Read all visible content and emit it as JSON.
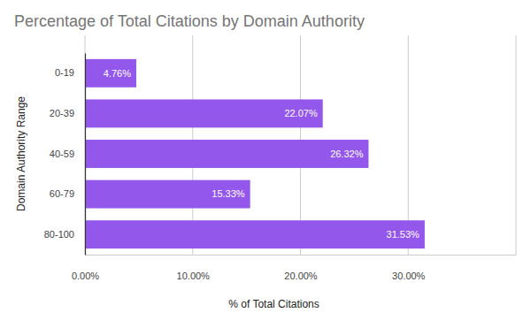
{
  "chart_data": {
    "type": "bar",
    "orientation": "horizontal",
    "title": "Percentage of Total Citations by Domain Authority",
    "x_label": "% of Total Citations",
    "y_label": "Domain Authority Range",
    "categories": [
      "0-19",
      "20-39",
      "40-59",
      "60-79",
      "80-100"
    ],
    "values": [
      4.76,
      22.07,
      26.32,
      15.33,
      31.53
    ],
    "value_labels": [
      "4.76%",
      "22.07%",
      "26.32%",
      "15.33%",
      "31.53%"
    ],
    "data_labels": true,
    "color": "#9457eb",
    "xlim": [
      0,
      40
    ],
    "xticks": [
      {
        "value": 0,
        "label": "0.00%"
      },
      {
        "value": 10,
        "label": "10.00%"
      },
      {
        "value": 20,
        "label": "20.00%"
      },
      {
        "value": 30,
        "label": "30.00%"
      }
    ],
    "grid": true
  }
}
